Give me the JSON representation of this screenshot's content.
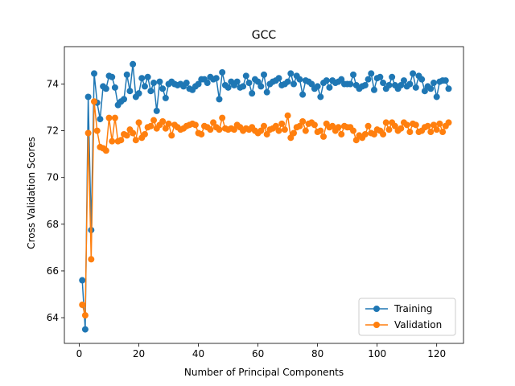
{
  "chart_data": {
    "type": "line",
    "title": "GCC",
    "xlabel": "Number of Principal Components",
    "ylabel": "Cross Validation Scores",
    "xlim": [
      -5,
      129
    ],
    "ylim": [
      62.9,
      75.6
    ],
    "xticks": [
      0,
      20,
      40,
      60,
      80,
      100,
      120
    ],
    "yticks": [
      64,
      66,
      68,
      70,
      72,
      74
    ],
    "grid": false,
    "legend_position": "lower-right",
    "x": [
      1,
      2,
      3,
      4,
      5,
      6,
      7,
      8,
      9,
      10,
      11,
      12,
      13,
      14,
      15,
      16,
      17,
      18,
      19,
      20,
      21,
      22,
      23,
      24,
      25,
      26,
      27,
      28,
      29,
      30,
      31,
      32,
      33,
      34,
      35,
      36,
      37,
      38,
      39,
      40,
      41,
      42,
      43,
      44,
      45,
      46,
      47,
      48,
      49,
      50,
      51,
      52,
      53,
      54,
      55,
      56,
      57,
      58,
      59,
      60,
      61,
      62,
      63,
      64,
      65,
      66,
      67,
      68,
      69,
      70,
      71,
      72,
      73,
      74,
      75,
      76,
      77,
      78,
      79,
      80,
      81,
      82,
      83,
      84,
      85,
      86,
      87,
      88,
      89,
      90,
      91,
      92,
      93,
      94,
      95,
      96,
      97,
      98,
      99,
      100,
      101,
      102,
      103,
      104,
      105,
      106,
      107,
      108,
      109,
      110,
      111,
      112,
      113,
      114,
      115,
      116,
      117,
      118,
      119,
      120,
      121,
      122,
      123,
      124
    ],
    "series": [
      {
        "name": "Training",
        "color": "#1f77b4",
        "values": [
          65.6,
          63.5,
          73.45,
          67.75,
          74.45,
          73.2,
          72.5,
          73.9,
          73.8,
          74.35,
          74.3,
          73.85,
          73.1,
          73.25,
          73.35,
          74.4,
          73.7,
          74.85,
          73.45,
          73.6,
          74.25,
          73.9,
          74.3,
          73.7,
          74.05,
          72.85,
          74.1,
          73.8,
          73.4,
          74.0,
          74.1,
          74.0,
          73.95,
          74.0,
          73.9,
          74.05,
          73.8,
          73.75,
          73.9,
          74.0,
          74.2,
          74.2,
          74.05,
          74.3,
          74.2,
          74.25,
          73.35,
          74.5,
          73.95,
          73.85,
          74.1,
          73.95,
          74.1,
          73.85,
          73.9,
          74.35,
          74.05,
          73.6,
          74.2,
          74.1,
          73.9,
          74.4,
          73.65,
          74.0,
          74.1,
          74.15,
          74.25,
          73.95,
          74.0,
          74.1,
          74.45,
          74.0,
          74.35,
          74.2,
          73.55,
          74.15,
          74.1,
          74.0,
          73.8,
          73.9,
          73.45,
          74.05,
          74.15,
          73.85,
          74.15,
          74.05,
          74.1,
          74.2,
          74.0,
          74.0,
          74.0,
          74.4,
          73.95,
          73.8,
          73.9,
          73.95,
          74.2,
          74.45,
          73.75,
          74.25,
          74.3,
          74.05,
          73.8,
          73.95,
          74.3,
          73.95,
          73.8,
          73.95,
          74.15,
          73.9,
          74.0,
          74.45,
          73.85,
          74.35,
          74.2,
          73.7,
          73.9,
          73.8,
          74.05,
          73.45,
          74.1,
          74.15,
          74.15,
          73.8
        ]
      },
      {
        "name": "Validation",
        "color": "#ff7f0e",
        "values": [
          64.55,
          64.1,
          71.9,
          66.5,
          73.25,
          72.0,
          71.3,
          71.25,
          71.15,
          72.55,
          71.55,
          72.55,
          71.55,
          71.6,
          71.85,
          71.8,
          72.05,
          71.9,
          71.6,
          72.35,
          71.7,
          71.85,
          72.15,
          72.2,
          72.45,
          72.1,
          72.25,
          72.4,
          72.1,
          72.3,
          71.8,
          72.25,
          72.15,
          72.05,
          72.1,
          72.2,
          72.25,
          72.3,
          72.25,
          71.9,
          71.85,
          72.2,
          72.15,
          72.05,
          72.35,
          72.15,
          72.05,
          72.55,
          72.1,
          72.05,
          72.1,
          72.05,
          72.25,
          72.15,
          72.0,
          72.1,
          72.05,
          72.15,
          72.0,
          71.9,
          72.0,
          72.2,
          71.85,
          72.05,
          72.1,
          72.2,
          72.0,
          72.3,
          72.05,
          72.65,
          71.7,
          71.9,
          72.15,
          72.2,
          72.4,
          72.0,
          72.3,
          72.35,
          72.25,
          71.95,
          72.0,
          71.75,
          72.3,
          72.15,
          72.2,
          72.0,
          72.15,
          71.85,
          72.2,
          72.15,
          72.15,
          72.0,
          71.6,
          71.8,
          71.7,
          71.85,
          72.2,
          71.9,
          71.85,
          72.05,
          72.0,
          71.85,
          72.35,
          72.05,
          72.35,
          72.2,
          72.0,
          72.1,
          72.35,
          72.25,
          71.95,
          72.3,
          72.25,
          71.95,
          72.0,
          72.15,
          72.2,
          71.95,
          72.25,
          72.05,
          72.3,
          71.95,
          72.2,
          72.35
        ]
      }
    ]
  }
}
